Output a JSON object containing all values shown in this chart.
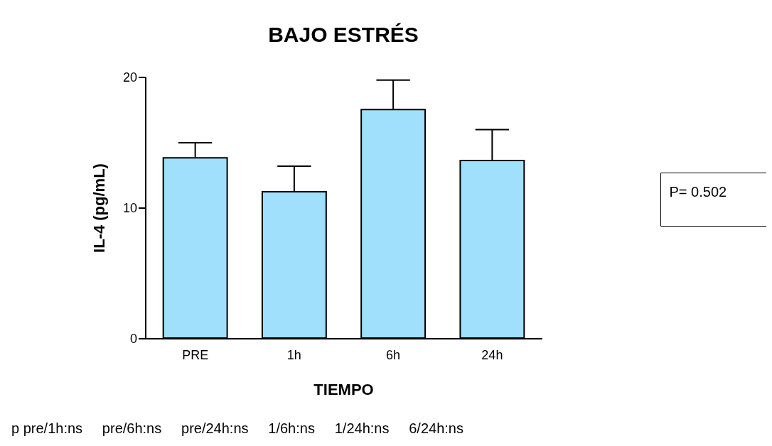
{
  "chart_data": {
    "type": "bar",
    "title": "BAJO ESTRÉS",
    "xlabel": "TIEMPO",
    "ylabel": "IL-4 (pg/mL)",
    "categories": [
      "PRE",
      "1h",
      "6h",
      "24h"
    ],
    "values": [
      13.9,
      11.3,
      17.6,
      13.7
    ],
    "errors": [
      1.1,
      1.9,
      2.2,
      2.3
    ],
    "color": "#a0e0fc",
    "ylim": [
      0,
      20
    ],
    "yticks": [
      0,
      10,
      20
    ],
    "grid": false,
    "annotations": [
      "P= 0.502",
      "p pre/1h:ns     pre/6h:ns     pre/24h:ns     1/6h:ns     1/24h:ns     6/24h:ns"
    ]
  }
}
